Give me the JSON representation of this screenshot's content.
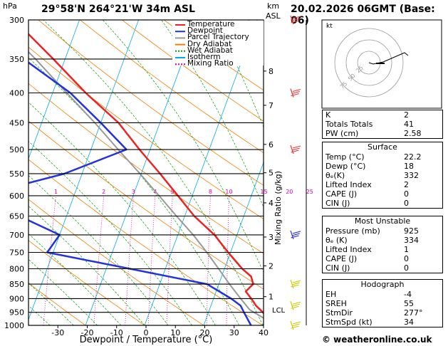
{
  "header": {
    "location": "29°58'N  264°21'W  34m  ASL",
    "datetime": "20.02.2026  06GMT  (Base: 06)",
    "hpa_label": "hPa",
    "km_label": "km",
    "asl_label": "ASL"
  },
  "footer": {
    "copyright": "© weatheronline.co.uk"
  },
  "chart_data": {
    "type": "skew-t",
    "xlabel": "Dewpoint / Temperature (°C)",
    "ylabel_right": "Mixing Ratio (g/kg)",
    "x_ticks": [
      -30,
      -20,
      -10,
      0,
      10,
      20,
      30,
      40
    ],
    "pressure_levels": [
      300,
      350,
      400,
      450,
      500,
      550,
      600,
      650,
      700,
      750,
      800,
      850,
      900,
      950,
      1000
    ],
    "km_ticks": [
      {
        "label": "8",
        "p": 367
      },
      {
        "label": "7",
        "p": 420
      },
      {
        "label": "6",
        "p": 490
      },
      {
        "label": "5",
        "p": 548
      },
      {
        "label": "4",
        "p": 617
      },
      {
        "label": "3",
        "p": 706
      },
      {
        "label": "2",
        "p": 791
      },
      {
        "label": "1",
        "p": 893
      }
    ],
    "lcl_label": "LCL",
    "lcl_p": 940,
    "mixing_ratio_labels": [
      "1",
      "2",
      "3",
      "4",
      "5",
      "8",
      "10",
      "15",
      "20",
      "25"
    ],
    "mixing_ratio_values": [
      1,
      2,
      3,
      4,
      5,
      8,
      10,
      15,
      20,
      25
    ],
    "legend": [
      {
        "name": "Temperature",
        "color": "#ee2222"
      },
      {
        "name": "Dewpoint",
        "color": "#2233dd"
      },
      {
        "name": "Parcel Trajectory",
        "color": "#999999"
      },
      {
        "name": "Dry Adiabat",
        "color": "#f08000"
      },
      {
        "name": "Wet Adiabat",
        "color": "#00a000"
      },
      {
        "name": "Isotherm",
        "color": "#00aaee"
      },
      {
        "name": "Mixing Ratio",
        "color": "#dd00aa"
      }
    ],
    "temperature": [
      {
        "p": 1000,
        "t": 22.2
      },
      {
        "p": 975,
        "t": 20.5
      },
      {
        "p": 950,
        "t": 19.2
      },
      {
        "p": 925,
        "t": 17.6
      },
      {
        "p": 900,
        "t": 16.4
      },
      {
        "p": 875,
        "t": 15.0
      },
      {
        "p": 850,
        "t": 15.8
      },
      {
        "p": 825,
        "t": 15.0
      },
      {
        "p": 800,
        "t": 13.0
      },
      {
        "p": 750,
        "t": 9.6
      },
      {
        "p": 700,
        "t": 6.2
      },
      {
        "p": 650,
        "t": 1.6
      },
      {
        "p": 600,
        "t": -2.4
      },
      {
        "p": 550,
        "t": -6.8
      },
      {
        "p": 500,
        "t": -11.8
      },
      {
        "p": 450,
        "t": -17.0
      },
      {
        "p": 400,
        "t": -24.4
      },
      {
        "p": 350,
        "t": -32.0
      },
      {
        "p": 300,
        "t": -41.0
      }
    ],
    "dewpoint": [
      {
        "p": 1000,
        "t": 18.0
      },
      {
        "p": 950,
        "t": 16.0
      },
      {
        "p": 925,
        "t": 15.0
      },
      {
        "p": 900,
        "t": 13.0
      },
      {
        "p": 850,
        "t": 8.0
      },
      {
        "p": 800,
        "t": -6.0
      },
      {
        "p": 750,
        "t": -21.0
      },
      {
        "p": 700,
        "t": -20.0
      },
      {
        "p": 650,
        "t": -28.0
      },
      {
        "p": 600,
        "t": -36.0
      },
      {
        "p": 550,
        "t": -23.0
      },
      {
        "p": 500,
        "t": -14.0
      },
      {
        "p": 450,
        "t": -20.0
      },
      {
        "p": 400,
        "t": -27.0
      },
      {
        "p": 350,
        "t": -37.0
      },
      {
        "p": 300,
        "t": -55.0
      }
    ],
    "parcel": [
      {
        "p": 1000,
        "t": 22.2
      },
      {
        "p": 940,
        "t": 16.8
      },
      {
        "p": 900,
        "t": 14.6
      },
      {
        "p": 850,
        "t": 11.8
      },
      {
        "p": 800,
        "t": 9.0
      },
      {
        "p": 750,
        "t": 6.0
      },
      {
        "p": 700,
        "t": 2.6
      },
      {
        "p": 650,
        "t": -1.4
      },
      {
        "p": 600,
        "t": -5.6
      },
      {
        "p": 550,
        "t": -10.2
      },
      {
        "p": 500,
        "t": -15.4
      },
      {
        "p": 450,
        "t": -21.0
      },
      {
        "p": 400,
        "t": -27.6
      },
      {
        "p": 350,
        "t": -35.0
      },
      {
        "p": 300,
        "t": -44.0
      }
    ],
    "wind_barbs": [
      {
        "p": 300,
        "color": "#ee3333"
      },
      {
        "p": 400,
        "color": "#ee3333"
      },
      {
        "p": 500,
        "color": "#ee3333"
      },
      {
        "p": 700,
        "color": "#3333ee"
      },
      {
        "p": 850,
        "color": "#cccc00"
      },
      {
        "p": 925,
        "color": "#cccc00"
      },
      {
        "p": 1000,
        "color": "#cccc00"
      }
    ]
  },
  "hodograph": {
    "label": "kt",
    "ring_labels": [
      "75",
      "50",
      "25"
    ]
  },
  "indices": {
    "rows": [
      {
        "label": "K",
        "value": "2"
      },
      {
        "label": "Totals Totals",
        "value": "41"
      },
      {
        "label": "PW (cm)",
        "value": "2.58"
      }
    ]
  },
  "surface": {
    "title": "Surface",
    "rows": [
      {
        "label": "Temp (°C)",
        "value": "22.2"
      },
      {
        "label": "Dewp (°C)",
        "value": "18"
      },
      {
        "label": "θₑ(K)",
        "value": "332"
      },
      {
        "label": "Lifted Index",
        "value": "2"
      },
      {
        "label": "CAPE (J)",
        "value": "0"
      },
      {
        "label": "CIN (J)",
        "value": "0"
      }
    ]
  },
  "most_unstable": {
    "title": "Most Unstable",
    "rows": [
      {
        "label": "Pressure (mb)",
        "value": "925"
      },
      {
        "label": "θₑ (K)",
        "value": "334"
      },
      {
        "label": "Lifted Index",
        "value": "1"
      },
      {
        "label": "CAPE (J)",
        "value": "0"
      },
      {
        "label": "CIN (J)",
        "value": "0"
      }
    ]
  },
  "hodograph_table": {
    "title": "Hodograph",
    "rows": [
      {
        "label": "EH",
        "value": "-4"
      },
      {
        "label": "SREH",
        "value": "55"
      },
      {
        "label": "StmDir",
        "value": "277°"
      },
      {
        "label": "StmSpd (kt)",
        "value": "34"
      }
    ]
  }
}
